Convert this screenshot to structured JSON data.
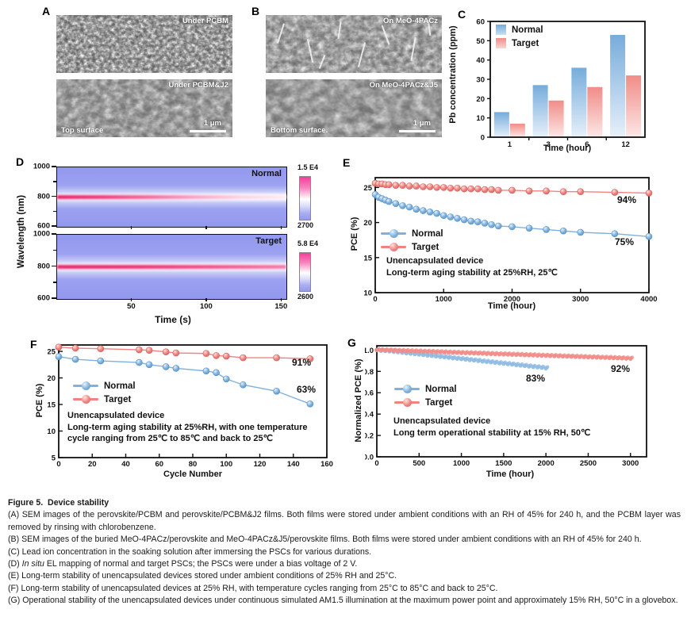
{
  "figure": {
    "panel_letters": {
      "A": "A",
      "B": "B",
      "C": "C",
      "D": "D",
      "E": "E",
      "F": "F",
      "G": "G"
    },
    "panel_A": {
      "img1_label": "Under PCBM",
      "img2_label": "Under PCBM&J2",
      "surface_label": "Top surface",
      "scale_label": "1 μm"
    },
    "panel_B": {
      "img1_label": "On MeO-4PACz",
      "img2_label": "On MeO-4PACz&J5",
      "surface_label": "Bottom surface.",
      "scale_label": "1 μm"
    }
  },
  "chart_data": [
    {
      "id": "C",
      "type": "bar",
      "categories": [
        "1",
        "3",
        "6",
        "12"
      ],
      "series": [
        {
          "name": "Normal",
          "values": [
            13,
            27,
            36,
            53
          ],
          "color_top": "#76ACDB",
          "color_bottom": "#E7F0FA"
        },
        {
          "name": "Target",
          "values": [
            7,
            19,
            26,
            32
          ],
          "color_top": "#F18C88",
          "color_bottom": "#FCE8E6"
        }
      ],
      "xlabel": "Time (hour)",
      "ylabel": "Pb concentration (ppm)",
      "ylim": [
        0,
        60
      ],
      "yticks": [
        0,
        10,
        20,
        30,
        40,
        50,
        60
      ],
      "legend_position": "top-left",
      "grid": false
    },
    {
      "id": "D",
      "type": "heatmap",
      "xlabel": "Time (s)",
      "ylabel": "Wavelength (nm)",
      "xlim": [
        0,
        153
      ],
      "xticks": [
        50,
        100,
        150
      ],
      "ylim": [
        600,
        1000
      ],
      "yticks": [
        600,
        800,
        1000
      ],
      "yticks_minor": [
        700,
        900
      ],
      "emission_band_nm": 800,
      "panels": [
        {
          "name": "Normal",
          "colorbar_top": "1.5 E4",
          "colorbar_bottom": "2700",
          "band_fades_to_white": true
        },
        {
          "name": "Target",
          "colorbar_top": "5.8 E4",
          "colorbar_bottom": "2600",
          "band_fades_to_white": false
        }
      ]
    },
    {
      "id": "E",
      "type": "line",
      "xlabel": "Time (hour)",
      "ylabel": "PCE (%)",
      "xlim": [
        0,
        4000
      ],
      "ylim": [
        10,
        26.4
      ],
      "xticks": [
        0,
        1000,
        2000,
        3000,
        4000
      ],
      "yticks": [
        10,
        15,
        20,
        25
      ],
      "series": [
        {
          "name": "Normal",
          "color": "#7EB1DD",
          "dark": "#5B93C7",
          "light": "#E8F2FB",
          "x": [
            0,
            50,
            100,
            150,
            200,
            300,
            400,
            500,
            600,
            700,
            800,
            900,
            1000,
            1100,
            1200,
            1300,
            1400,
            1500,
            1600,
            1700,
            1800,
            2000,
            2250,
            2500,
            2750,
            3000,
            3500,
            4000
          ],
          "y": [
            24.0,
            23.6,
            23.4,
            23.2,
            23.0,
            22.7,
            22.4,
            22.2,
            21.9,
            21.7,
            21.5,
            21.3,
            21.0,
            20.8,
            20.6,
            20.4,
            20.2,
            20.1,
            19.9,
            19.7,
            19.5,
            19.4,
            19.2,
            19.0,
            18.8,
            18.6,
            18.4,
            18.0
          ]
        },
        {
          "name": "Target",
          "color": "#F0837F",
          "dark": "#D4625E",
          "light": "#FDE4E0",
          "x": [
            0,
            50,
            100,
            150,
            200,
            300,
            400,
            500,
            600,
            700,
            800,
            900,
            1000,
            1100,
            1200,
            1300,
            1400,
            1500,
            1600,
            1700,
            1800,
            2000,
            2250,
            2500,
            2750,
            3000,
            3500,
            4000
          ],
          "y": [
            25.6,
            25.5,
            25.5,
            25.4,
            25.4,
            25.3,
            25.3,
            25.2,
            25.2,
            25.1,
            25.1,
            25.0,
            25.0,
            24.9,
            24.9,
            24.8,
            24.8,
            24.8,
            24.7,
            24.7,
            24.6,
            24.6,
            24.5,
            24.5,
            24.4,
            24.4,
            24.3,
            24.2
          ]
        }
      ],
      "annotations": [
        {
          "text": "94%",
          "series": "Target"
        },
        {
          "text": "75%",
          "series": "Normal"
        }
      ],
      "info": [
        "Unencapsulated device",
        "Long-term aging stability at 25%RH, 25℃"
      ]
    },
    {
      "id": "F",
      "type": "line",
      "xlabel": "Cycle Number",
      "ylabel": "PCE (%)",
      "xlim": [
        0,
        160
      ],
      "ylim": [
        5,
        26.2
      ],
      "xticks": [
        0,
        20,
        40,
        60,
        80,
        100,
        120,
        140,
        160
      ],
      "yticks": [
        5,
        10,
        15,
        20,
        25
      ],
      "series": [
        {
          "name": "Normal",
          "color": "#7EB1DD",
          "dark": "#5B93C7",
          "light": "#E8F2FB",
          "x": [
            0,
            10,
            25,
            48,
            54,
            64,
            70,
            88,
            94,
            100,
            110,
            130,
            150
          ],
          "y": [
            24.0,
            23.5,
            23.2,
            22.9,
            22.5,
            22.1,
            21.8,
            21.3,
            21.0,
            19.8,
            18.7,
            17.5,
            15.1
          ]
        },
        {
          "name": "Target",
          "color": "#F0837F",
          "dark": "#D4625E",
          "light": "#FDE4E0",
          "x": [
            0,
            10,
            25,
            48,
            54,
            64,
            70,
            88,
            94,
            100,
            110,
            130,
            150
          ],
          "y": [
            25.8,
            25.6,
            25.5,
            25.3,
            25.2,
            24.9,
            24.7,
            24.6,
            24.2,
            24.1,
            23.8,
            23.8,
            23.6
          ]
        }
      ],
      "annotations": [
        {
          "text": "91%",
          "series": "Target"
        },
        {
          "text": "63%",
          "series": "Normal"
        }
      ],
      "info": [
        "Unencapsulated device",
        "Long-term aging stability at 25%RH, with one temperature",
        "cycle ranging from 25℃ to 85℃ and back to 25℃"
      ]
    },
    {
      "id": "G",
      "type": "scatter",
      "xlabel": "Time (hour)",
      "ylabel": "Normalized PCE (%)",
      "xlim": [
        0,
        3190
      ],
      "ylim": [
        0,
        1.04
      ],
      "ytick_decimals": 1,
      "xticks": [
        0,
        500,
        1000,
        1500,
        2000,
        2500,
        3000
      ],
      "yticks": [
        0.0,
        0.2,
        0.4,
        0.6,
        0.8,
        1.0
      ],
      "series": [
        {
          "name": "Normal",
          "color": "#8FBCE2",
          "dark": "#5B93C7",
          "x_start": 0,
          "x_step": 50,
          "values": [
            1.0,
            0.994,
            0.992,
            0.989,
            0.984,
            0.98,
            0.976,
            0.971,
            0.967,
            0.963,
            0.959,
            0.954,
            0.95,
            0.946,
            0.941,
            0.937,
            0.933,
            0.929,
            0.924,
            0.92,
            0.916,
            0.912,
            0.907,
            0.903,
            0.899,
            0.894,
            0.89,
            0.886,
            0.882,
            0.877,
            0.873,
            0.869,
            0.865,
            0.86,
            0.856,
            0.852,
            0.847,
            0.843,
            0.839,
            0.835,
            0.83
          ]
        },
        {
          "name": "Target",
          "color": "#F28B87",
          "dark": "#D4625E",
          "x_start": 0,
          "x_step": 50,
          "values": [
            1.0,
            0.999,
            0.997,
            0.996,
            0.995,
            0.993,
            0.992,
            0.991,
            0.989,
            0.988,
            0.987,
            0.985,
            0.984,
            0.983,
            0.981,
            0.98,
            0.979,
            0.977,
            0.976,
            0.975,
            0.973,
            0.972,
            0.971,
            0.969,
            0.968,
            0.967,
            0.965,
            0.964,
            0.963,
            0.961,
            0.96,
            0.959,
            0.957,
            0.956,
            0.955,
            0.953,
            0.952,
            0.951,
            0.949,
            0.948,
            0.947,
            0.945,
            0.944,
            0.943,
            0.941,
            0.94,
            0.939,
            0.937,
            0.936,
            0.935,
            0.933,
            0.932,
            0.931,
            0.929,
            0.928,
            0.927,
            0.925,
            0.924,
            0.923,
            0.921,
            0.92
          ]
        }
      ],
      "annotations": [
        {
          "text": "83%",
          "series": "Normal"
        },
        {
          "text": "92%",
          "series": "Target"
        }
      ],
      "info": [
        "Unencapsulated device",
        "Long term operational stability at 15% RH, 50℃"
      ]
    }
  ],
  "caption": {
    "title_prefix": "Figure 5.",
    "title_text": "Device stability",
    "items": [
      {
        "text": "(A) SEM images of the perovskite/PCBM and perovskite/PCBM&J2 films. Both films were stored under ambient conditions with an RH of 45% for 240 h, and the PCBM layer was removed by rinsing with chlorobenzene."
      },
      {
        "text": "(B) SEM images of the buried MeO-4PACz/perovskite and MeO-4PACz&J5/perovskite films. Both films were stored under ambient conditions with an RH of 45% for 240 h."
      },
      {
        "text": "(C) Lead ion concentration in the soaking solution after immersing the PSCs for various durations."
      },
      {
        "pre": "(D) ",
        "italic": "In situ",
        "post": " EL mapping of normal and target PSCs; the PSCs were under a bias voltage of 2 V."
      },
      {
        "text": "(E) Long-term stability of unencapsulated devices stored under ambient conditions of 25% RH and 25°C."
      },
      {
        "text": "(F) Long-term stability of unencapsulated devices at 25% RH, with temperature cycles ranging from 25°C to 85°C and back to 25°C."
      },
      {
        "text": "(G) Operational stability of the unencapsulated devices under continuous simulated AM1.5 illumination at the maximum power point and approximately 15% RH, 50°C in a glovebox."
      }
    ]
  },
  "colors": {
    "normal_blue": "#7EB1DD",
    "target_red": "#F0837F",
    "heatmap_background": "#9298EE",
    "heatmap_band": "#E6256E",
    "caption_title": "#B5524E"
  }
}
